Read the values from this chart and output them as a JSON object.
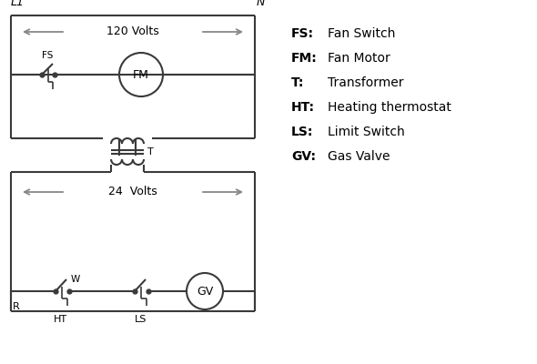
{
  "bg_color": "#ffffff",
  "line_color": "#3a3a3a",
  "arrow_color": "#888888",
  "text_color": "#000000",
  "legend": [
    [
      "FS:",
      "Fan Switch"
    ],
    [
      "FM:",
      "Fan Motor"
    ],
    [
      "T:",
      "Transformer"
    ],
    [
      "HT:",
      "Heating thermostat"
    ],
    [
      "LS:",
      "Limit Switch"
    ],
    [
      "GV:",
      "Gas Valve"
    ]
  ],
  "volts_120": "120 Volts",
  "volts_24": "24  Volts",
  "L1": "L1",
  "N": "N"
}
